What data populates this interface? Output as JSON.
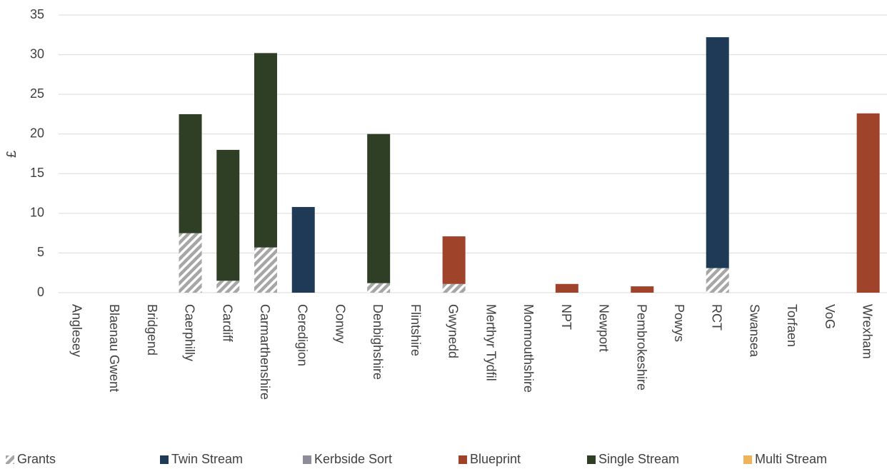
{
  "chart_data": {
    "type": "bar",
    "stacked": true,
    "title": "",
    "xlabel": "",
    "ylabel": "£",
    "ylim": [
      0,
      35
    ],
    "yticks": [
      0,
      5,
      10,
      15,
      20,
      25,
      30,
      35
    ],
    "grid": true,
    "legend_position": "bottom",
    "categories": [
      "Anglesey",
      "Blaenau Gwent",
      "Bridgend",
      "Caerphilly",
      "Cardiff",
      "Carmarthenshire",
      "Ceredigion",
      "Conwy",
      "Denbighshire",
      "Flintshire",
      "Gwynedd",
      "Merthyr Tydfil",
      "Monmouthshire",
      "NPT",
      "Newport",
      "Pembrokeshire",
      "Powys",
      "RCT",
      "Swansea",
      "Torfaen",
      "VoG",
      "Wrexham"
    ],
    "series": [
      {
        "name": "Grants",
        "color": "#a6a6a6",
        "pattern": "hatch",
        "values": [
          0,
          0,
          0,
          7.5,
          1.5,
          5.7,
          0,
          0,
          1.2,
          0,
          1.1,
          0,
          0,
          0,
          0,
          0,
          0,
          3.1,
          0,
          0,
          0,
          0
        ]
      },
      {
        "name": "Twin Stream",
        "color": "#1f3a56",
        "values": [
          0,
          0,
          0,
          0,
          0,
          0,
          10.8,
          0,
          0,
          0,
          0,
          0,
          0,
          0,
          0,
          0,
          0,
          29.1,
          0,
          0,
          0,
          0
        ]
      },
      {
        "name": "Kerbside Sort",
        "color": "#8d8c9a",
        "values": [
          0,
          0,
          0,
          0,
          0,
          0,
          0,
          0,
          0,
          0,
          0,
          0,
          0,
          0,
          0,
          0,
          0,
          0,
          0,
          0,
          0,
          0
        ]
      },
      {
        "name": "Blueprint",
        "color": "#a0432b",
        "values": [
          0,
          0,
          0,
          0,
          0,
          0,
          0,
          0,
          0,
          0,
          6.0,
          0,
          0,
          1.1,
          0,
          0.8,
          0,
          0,
          0,
          0,
          0,
          22.6
        ]
      },
      {
        "name": "Single Stream",
        "color": "#2f3f25",
        "values": [
          0,
          0,
          0,
          15.0,
          16.5,
          24.5,
          0,
          0,
          18.8,
          0,
          0,
          0,
          0,
          0,
          0,
          0,
          0,
          0,
          0,
          0,
          0,
          0
        ]
      },
      {
        "name": "Multi Stream",
        "color": "#f0b35a",
        "values": [
          0,
          0,
          0,
          0,
          0,
          0,
          0,
          0,
          0,
          0,
          0,
          0,
          0,
          0,
          0,
          0,
          0,
          0,
          0,
          0,
          0,
          0
        ]
      }
    ]
  }
}
